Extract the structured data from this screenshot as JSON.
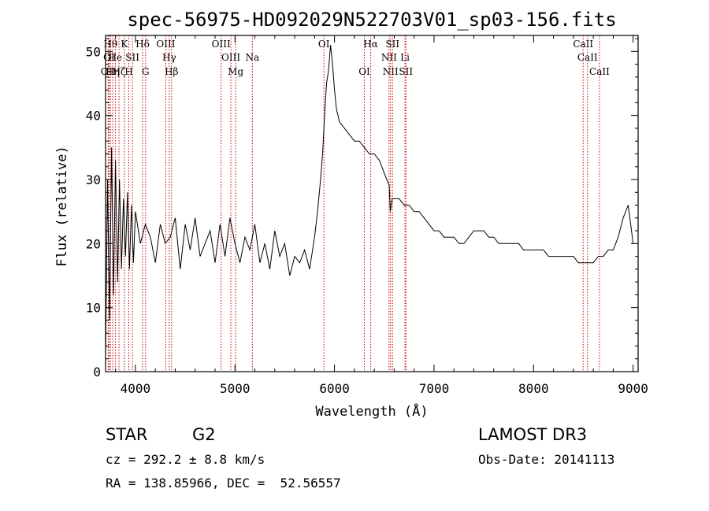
{
  "chart_data": {
    "type": "line",
    "title": "spec-56975-HD092029N522703V01_sp03-156.fits",
    "xlabel": "Wavelength (Å)",
    "ylabel": "Flux (relative)",
    "xlim": [
      3700,
      9050
    ],
    "ylim": [
      0,
      52.5
    ],
    "xticks": [
      4000,
      5000,
      6000,
      7000,
      8000,
      9000
    ],
    "yticks": [
      0,
      10,
      20,
      30,
      40,
      50
    ],
    "grid": false,
    "line_color": "#000000",
    "marker_color": "#cc0000",
    "series": [
      {
        "x": [
          3700,
          3720,
          3740,
          3760,
          3780,
          3800,
          3820,
          3840,
          3860,
          3880,
          3900,
          3920,
          3940,
          3960,
          3980,
          4000,
          4050,
          4100,
          4150,
          4200,
          4250,
          4300,
          4350,
          4400,
          4450,
          4500,
          4550,
          4600,
          4650,
          4700,
          4750,
          4800,
          4850,
          4900,
          4950,
          5000,
          5050,
          5100,
          5150,
          5200,
          5250,
          5300,
          5350,
          5400,
          5450,
          5500,
          5550,
          5600,
          5650,
          5700,
          5750,
          5800,
          5830,
          5860,
          5880,
          5900,
          5920,
          5940,
          5960,
          5980,
          6000,
          6020,
          6050,
          6100,
          6150,
          6200,
          6250,
          6300,
          6350,
          6400,
          6450,
          6500,
          6550,
          6560,
          6580,
          6600,
          6650,
          6700,
          6750,
          6800,
          6850,
          6900,
          6950,
          7000,
          7050,
          7100,
          7150,
          7200,
          7250,
          7300,
          7350,
          7400,
          7450,
          7500,
          7550,
          7600,
          7650,
          7700,
          7750,
          7800,
          7850,
          7900,
          7950,
          8000,
          8050,
          8100,
          8150,
          8200,
          8250,
          8300,
          8350,
          8400,
          8450,
          8500,
          8550,
          8600,
          8650,
          8700,
          8750,
          8800,
          8850,
          8900,
          8950,
          9000
        ],
        "y": [
          2,
          30,
          8,
          35,
          12,
          33,
          14,
          30,
          16,
          27,
          18,
          28,
          16,
          26,
          17,
          25,
          20,
          23,
          21,
          17,
          23,
          20,
          21,
          24,
          16,
          23,
          19,
          24,
          18,
          20,
          22,
          17,
          23,
          18,
          24,
          20,
          17,
          21,
          19,
          23,
          17,
          20,
          16,
          22,
          18,
          20,
          15,
          18,
          17,
          19,
          16,
          21,
          25,
          30,
          34,
          40,
          45,
          47,
          51,
          48,
          44,
          41,
          39,
          38,
          37,
          36,
          36,
          35,
          34,
          34,
          33,
          31,
          29,
          25,
          27,
          27,
          27,
          26,
          26,
          25,
          25,
          24,
          23,
          22,
          22,
          21,
          21,
          21,
          20,
          20,
          21,
          22,
          22,
          22,
          21,
          21,
          20,
          20,
          20,
          20,
          20,
          19,
          19,
          19,
          19,
          19,
          18,
          18,
          18,
          18,
          18,
          18,
          17,
          17,
          17,
          17,
          18,
          18,
          19,
          19,
          21,
          24,
          26,
          20
        ]
      }
    ],
    "line_markers": [
      {
        "label": "OII",
        "wl": 3727,
        "row": 2
      },
      {
        "label": "OI",
        "wl": 3735,
        "row": 1
      },
      {
        "label": "Hθ",
        "wl": 3750,
        "row": 0
      },
      {
        "label": "Hη",
        "wl": 3771,
        "row": 2
      },
      {
        "label": "He",
        "wl": 3798,
        "row": 1
      },
      {
        "label": "Hζ",
        "wl": 3835,
        "row": 2
      },
      {
        "label": "K",
        "wl": 3889,
        "row": 0
      },
      {
        "label": "H",
        "wl": 3934,
        "row": 2
      },
      {
        "label": "SII",
        "wl": 3970,
        "row": 1
      },
      {
        "label": "Hδ",
        "wl": 4072,
        "row": 0
      },
      {
        "label": "G",
        "wl": 4102,
        "row": 2
      },
      {
        "label": "OIII",
        "wl": 4305,
        "row": 0
      },
      {
        "label": "Hγ",
        "wl": 4340,
        "row": 1
      },
      {
        "label": "Hβ",
        "wl": 4363,
        "row": 2
      },
      {
        "label": "OIII",
        "wl": 4861,
        "row": 0
      },
      {
        "label": "OIII",
        "wl": 4959,
        "row": 1
      },
      {
        "label": "Mg",
        "wl": 5007,
        "row": 2
      },
      {
        "label": "Na",
        "wl": 5175,
        "row": 1
      },
      {
        "label": "OI",
        "wl": 5894,
        "row": 0
      },
      {
        "label": "OI",
        "wl": 6300,
        "row": 2
      },
      {
        "label": "Hα",
        "wl": 6364,
        "row": 0
      },
      {
        "label": "NII",
        "wl": 6548,
        "row": 1
      },
      {
        "label": "NII",
        "wl": 6563,
        "row": 2
      },
      {
        "label": "SII",
        "wl": 6583,
        "row": 0
      },
      {
        "label": "Li",
        "wl": 6708,
        "row": 1
      },
      {
        "label": "SII",
        "wl": 6717,
        "row": 2
      },
      {
        "label": "CaII",
        "wl": 8498,
        "row": 0
      },
      {
        "label": "CaII",
        "wl": 8542,
        "row": 1
      },
      {
        "label": "CaII",
        "wl": 8662,
        "row": 2
      }
    ]
  },
  "info": {
    "object_class": "STAR",
    "subclass": "G2",
    "survey": "LAMOST DR3",
    "cz": "cz = 292.2 ± 8.8 km/s",
    "obs_date": "Obs-Date: 20141113",
    "radec": "RA = 138.85966, DEC =  52.56557"
  }
}
